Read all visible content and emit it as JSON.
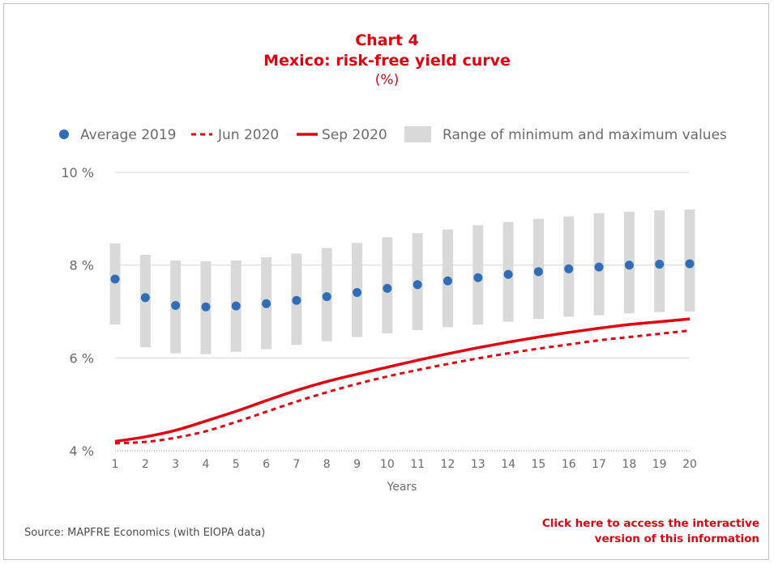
{
  "header": {
    "title": "Chart 4",
    "subtitle": "Mexico: risk-free yield curve",
    "unit": "(%)"
  },
  "legend": {
    "average": "Average 2019",
    "jun": "Jun 2020",
    "sep": "Sep 2020",
    "range": "Range of minimum and maximum values"
  },
  "footer": {
    "source": "Source: MAPFRE Economics (with EIOPA data)",
    "link_line1": "Click here to access the interactive",
    "link_line2": "version of this information"
  },
  "colors": {
    "red": "#e3000f",
    "blue": "#2f6eb6",
    "range": "#d9d9d9",
    "grid": "#d9d9d9",
    "text": "#6b6b6b"
  },
  "chart_data": {
    "type": "line",
    "xlabel": "Years",
    "ylabel": "",
    "x": [
      1,
      2,
      3,
      4,
      5,
      6,
      7,
      8,
      9,
      10,
      11,
      12,
      13,
      14,
      15,
      16,
      17,
      18,
      19,
      20
    ],
    "ylim": [
      4,
      10
    ],
    "yticks": [
      4,
      6,
      8,
      10
    ],
    "ytick_labels": [
      "4 %",
      "6 %",
      "8 %",
      "10 %"
    ],
    "grid": true,
    "legend_position": "top",
    "series": [
      {
        "name": "Average 2019",
        "kind": "scatter",
        "values": [
          7.7,
          7.3,
          7.13,
          7.1,
          7.12,
          7.17,
          7.24,
          7.32,
          7.41,
          7.5,
          7.58,
          7.66,
          7.73,
          7.8,
          7.86,
          7.92,
          7.96,
          8.0,
          8.02,
          8.03
        ]
      },
      {
        "name": "Jun 2020",
        "kind": "line-dashed",
        "values": [
          4.16,
          4.19,
          4.28,
          4.42,
          4.62,
          4.84,
          5.06,
          5.26,
          5.44,
          5.6,
          5.74,
          5.87,
          5.99,
          6.1,
          6.2,
          6.29,
          6.38,
          6.45,
          6.52,
          6.59
        ]
      },
      {
        "name": "Sep 2020",
        "kind": "line",
        "values": [
          4.2,
          4.3,
          4.44,
          4.64,
          4.85,
          5.08,
          5.3,
          5.49,
          5.65,
          5.8,
          5.95,
          6.09,
          6.22,
          6.34,
          6.45,
          6.55,
          6.64,
          6.72,
          6.78,
          6.84
        ]
      },
      {
        "name": "Range of minimum and maximum values",
        "kind": "range",
        "low": [
          6.72,
          6.23,
          6.1,
          6.08,
          6.13,
          6.19,
          6.28,
          6.36,
          6.45,
          6.53,
          6.6,
          6.66,
          6.72,
          6.78,
          6.84,
          6.89,
          6.92,
          6.96,
          6.99,
          7.0
        ],
        "high": [
          8.47,
          8.22,
          8.1,
          8.08,
          8.1,
          8.17,
          8.25,
          8.37,
          8.48,
          8.6,
          8.69,
          8.77,
          8.86,
          8.93,
          9.0,
          9.05,
          9.12,
          9.15,
          9.18,
          9.2
        ]
      }
    ]
  }
}
